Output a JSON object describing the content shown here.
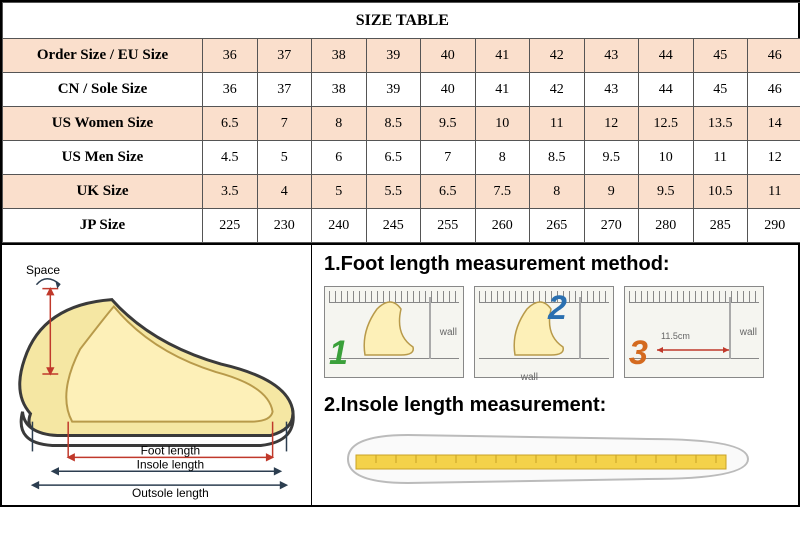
{
  "title": "SIZE TABLE",
  "rows": [
    {
      "label": "Order Size / EU Size",
      "shade": true,
      "cells": [
        "36",
        "37",
        "38",
        "39",
        "40",
        "41",
        "42",
        "43",
        "44",
        "45",
        "46"
      ]
    },
    {
      "label": "CN / Sole Size",
      "shade": false,
      "cells": [
        "36",
        "37",
        "38",
        "39",
        "40",
        "41",
        "42",
        "43",
        "44",
        "45",
        "46"
      ]
    },
    {
      "label": "US Women Size",
      "shade": true,
      "cells": [
        "6.5",
        "7",
        "8",
        "8.5",
        "9.5",
        "10",
        "11",
        "12",
        "12.5",
        "13.5",
        "14"
      ]
    },
    {
      "label": "US Men Size",
      "shade": false,
      "cells": [
        "4.5",
        "5",
        "6",
        "6.5",
        "7",
        "8",
        "8.5",
        "9.5",
        "10",
        "11",
        "12"
      ]
    },
    {
      "label": "UK Size",
      "shade": true,
      "cells": [
        "3.5",
        "4",
        "5",
        "5.5",
        "6.5",
        "7.5",
        "8",
        "9",
        "9.5",
        "10.5",
        "11"
      ]
    },
    {
      "label": "JP Size",
      "shade": false,
      "cells": [
        "225",
        "230",
        "240",
        "245",
        "255",
        "260",
        "265",
        "270",
        "280",
        "285",
        "290"
      ]
    }
  ],
  "diagram": {
    "space_label": "Space",
    "foot_length_label": "Foot length",
    "insole_length_label": "Insole length",
    "outsole_length_label": "Outsole length",
    "heading1": "1.Foot length measurement method:",
    "heading2": "2.Insole length measurement:",
    "wall": "wall",
    "step_dim_label": "11.5cm",
    "colors": {
      "shoe_outline": "#3a3a3a",
      "shoe_fill": "#f5e7a3",
      "foot_fill": "#fdf0b8",
      "dim_line": "#c0392b",
      "dim_dark": "#2c3e50",
      "tape_yellow": "#f4d24a"
    }
  }
}
